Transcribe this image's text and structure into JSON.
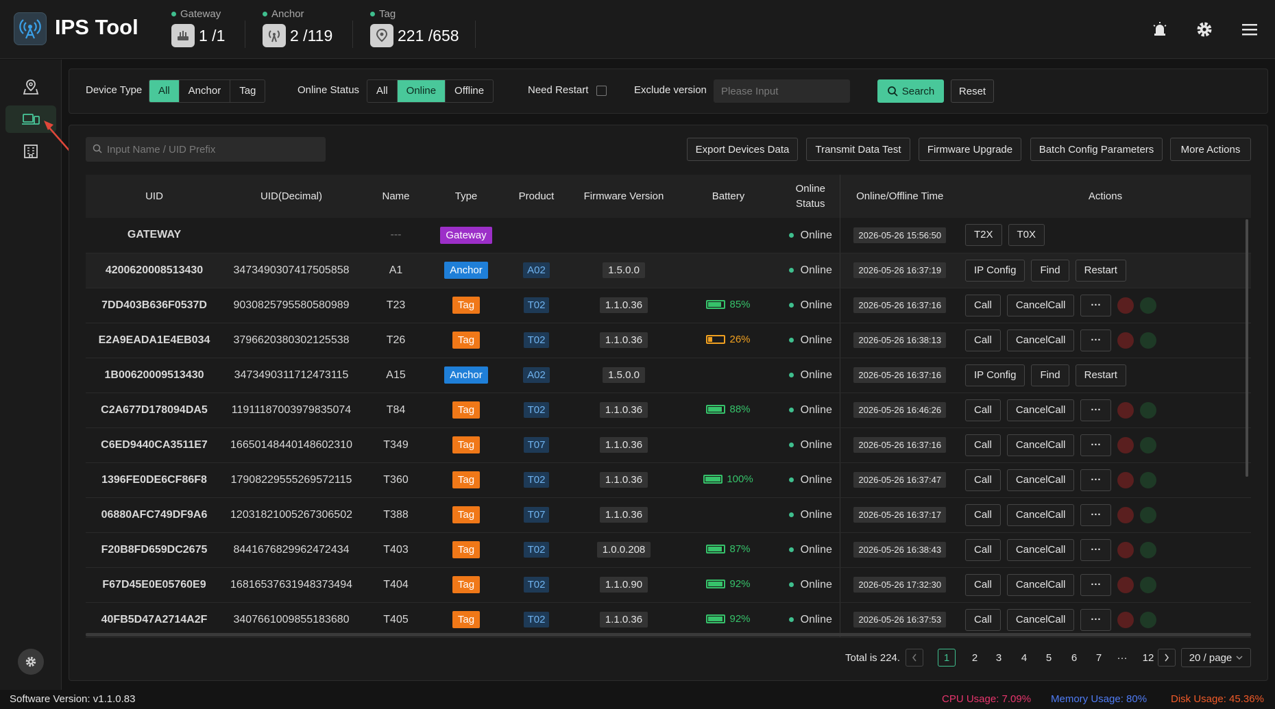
{
  "header": {
    "app_title": "IPS Tool",
    "stats": [
      {
        "label": "Gateway",
        "value": "1 /1",
        "icon": "router-icon"
      },
      {
        "label": "Anchor",
        "value": "2 /119",
        "icon": "antenna-icon"
      },
      {
        "label": "Tag",
        "value": "221 /658",
        "icon": "location-pin-icon"
      }
    ],
    "accent": "#49c89a"
  },
  "filters": {
    "device_type_label": "Device Type",
    "device_type_options": [
      "All",
      "Anchor",
      "Tag"
    ],
    "device_type_selected": "All",
    "online_status_label": "Online Status",
    "online_status_options": [
      "All",
      "Online",
      "Offline"
    ],
    "online_status_selected": "Online",
    "need_restart_label": "Need Restart",
    "exclude_version_label": "Exclude version",
    "exclude_version_placeholder": "Please Input",
    "search_label": "Search",
    "reset_label": "Reset"
  },
  "toolbar": {
    "search_placeholder": "Input Name / UID Prefix",
    "export_label": "Export Devices Data",
    "transmit_label": "Transmit Data Test",
    "firmware_label": "Firmware Upgrade",
    "batch_label": "Batch Config Parameters",
    "more_label": "More Actions"
  },
  "table": {
    "columns": [
      "UID",
      "UID(Decimal)",
      "Name",
      "Type",
      "Product",
      "Firmware Version",
      "Battery",
      "Online Status",
      "Online/Offline Time",
      "Actions"
    ],
    "rows": [
      {
        "uid": "GATEWAY",
        "uid_dec": "",
        "name": "---",
        "type": "Gateway",
        "product": "",
        "firmware": "",
        "battery": null,
        "status": "Online",
        "time": "2026-05-26 15:56:50",
        "actions": [
          "T2X",
          "T0X"
        ],
        "extras": false
      },
      {
        "uid": "4200620008513430",
        "uid_dec": "3473490307417505858",
        "name": "A1",
        "type": "Anchor",
        "product": "A02",
        "firmware": "1.5.0.0",
        "battery": null,
        "status": "Online",
        "time": "2026-05-26 16:37:19",
        "actions": [
          "IP Config",
          "Find",
          "Restart"
        ],
        "extras": false
      },
      {
        "uid": "7DD403B636F0537D",
        "uid_dec": "9030825795580580989",
        "name": "T23",
        "type": "Tag",
        "product": "T02",
        "firmware": "1.1.0.36",
        "battery": 85,
        "status": "Online",
        "time": "2026-05-26 16:37:16",
        "actions": [
          "Call",
          "CancelCall",
          "···"
        ],
        "extras": true
      },
      {
        "uid": "E2A9EADA1E4EB034",
        "uid_dec": "3796620380302125538",
        "name": "T26",
        "type": "Tag",
        "product": "T02",
        "firmware": "1.1.0.36",
        "battery": 26,
        "status": "Online",
        "time": "2026-05-26 16:38:13",
        "actions": [
          "Call",
          "CancelCall",
          "···"
        ],
        "extras": true
      },
      {
        "uid": "1B00620009513430",
        "uid_dec": "3473490311712473115",
        "name": "A15",
        "type": "Anchor",
        "product": "A02",
        "firmware": "1.5.0.0",
        "battery": null,
        "status": "Online",
        "time": "2026-05-26 16:37:16",
        "actions": [
          "IP Config",
          "Find",
          "Restart"
        ],
        "extras": false
      },
      {
        "uid": "C2A677D178094DA5",
        "uid_dec": "11911187003979835074",
        "name": "T84",
        "type": "Tag",
        "product": "T02",
        "firmware": "1.1.0.36",
        "battery": 88,
        "status": "Online",
        "time": "2026-05-26 16:46:26",
        "actions": [
          "Call",
          "CancelCall",
          "···"
        ],
        "extras": true
      },
      {
        "uid": "C6ED9440CA3511E7",
        "uid_dec": "16650148440148602310",
        "name": "T349",
        "type": "Tag",
        "product": "T07",
        "firmware": "1.1.0.36",
        "battery": null,
        "status": "Online",
        "time": "2026-05-26 16:37:16",
        "actions": [
          "Call",
          "CancelCall",
          "···"
        ],
        "extras": true
      },
      {
        "uid": "1396FE0DE6CF86F8",
        "uid_dec": "17908229555269572115",
        "name": "T360",
        "type": "Tag",
        "product": "T02",
        "firmware": "1.1.0.36",
        "battery": 100,
        "status": "Online",
        "time": "2026-05-26 16:37:47",
        "actions": [
          "Call",
          "CancelCall",
          "···"
        ],
        "extras": true
      },
      {
        "uid": "06880AFC749DF9A6",
        "uid_dec": "12031821005267306502",
        "name": "T388",
        "type": "Tag",
        "product": "T07",
        "firmware": "1.1.0.36",
        "battery": null,
        "status": "Online",
        "time": "2026-05-26 16:37:17",
        "actions": [
          "Call",
          "CancelCall",
          "···"
        ],
        "extras": true
      },
      {
        "uid": "F20B8FD659DC2675",
        "uid_dec": "8441676829962472434",
        "name": "T403",
        "type": "Tag",
        "product": "T02",
        "firmware": "1.0.0.208",
        "battery": 87,
        "status": "Online",
        "time": "2026-05-26 16:38:43",
        "actions": [
          "Call",
          "CancelCall",
          "···"
        ],
        "extras": true
      },
      {
        "uid": "F67D45E0E05760E9",
        "uid_dec": "16816537631948373494",
        "name": "T404",
        "type": "Tag",
        "product": "T02",
        "firmware": "1.1.0.90",
        "battery": 92,
        "status": "Online",
        "time": "2026-05-26 17:32:30",
        "actions": [
          "Call",
          "CancelCall",
          "···"
        ],
        "extras": true
      },
      {
        "uid": "40FB5D47A2714A2F",
        "uid_dec": "3407661009855183680",
        "name": "T405",
        "type": "Tag",
        "product": "T02",
        "firmware": "1.1.0.36",
        "battery": 92,
        "status": "Online",
        "time": "2026-05-26 16:37:53",
        "actions": [
          "Call",
          "CancelCall",
          "···"
        ],
        "extras": true
      }
    ]
  },
  "pagination": {
    "total_text": "Total is 224.",
    "pages": [
      "1",
      "2",
      "3",
      "4",
      "5",
      "6",
      "7",
      "···",
      "12"
    ],
    "current": "1",
    "page_size": "20 / page"
  },
  "footer": {
    "software_version": "Software Version:  v1.1.0.83",
    "cpu": "CPU Usage:  7.09%",
    "memory": "Memory Usage:  80%",
    "disk": "Disk Usage:  45.36%",
    "cpu_color": "#e8356d",
    "memory_color": "#4f7cf5",
    "disk_color": "#f05a28"
  }
}
